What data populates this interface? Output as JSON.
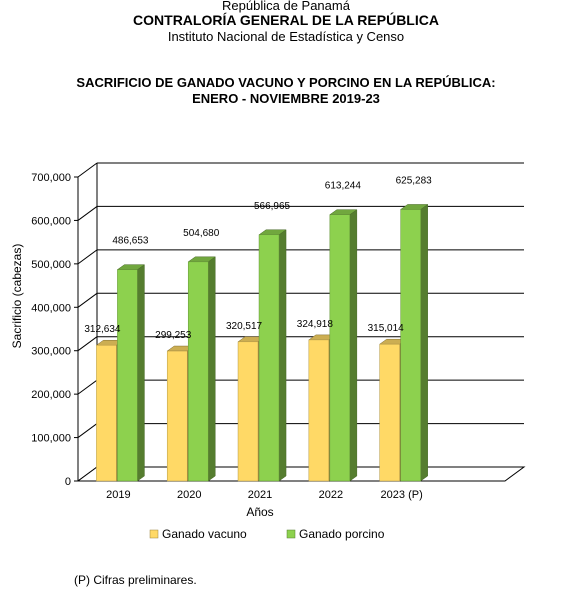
{
  "header": {
    "line1": "República de Panamá",
    "line2": "CONTRALORÍA GENERAL DE LA REPÚBLICA",
    "line3": "Instituto Nacional de Estadística y Censo"
  },
  "chart_data": {
    "type": "bar",
    "title": "SACRIFICIO DE GANADO VACUNO Y PORCINO EN LA REPÚBLICA:",
    "subtitle": "ENERO - NOVIEMBRE 2019-23",
    "categories": [
      "2019",
      "2020",
      "2021",
      "2022",
      "2023 (P)"
    ],
    "series": [
      {
        "name": "Ganado vacuno",
        "values": [
          312634,
          299253,
          320517,
          324918,
          315014
        ],
        "labels": [
          "312,634",
          "299,253",
          "320,517",
          "324,918",
          "315,014"
        ],
        "color": "#FFD966"
      },
      {
        "name": "Ganado porcino",
        "values": [
          486653,
          504680,
          566965,
          613244,
          625283
        ],
        "labels": [
          "486,653",
          "504,680",
          "566,965",
          "613,244",
          "625,283"
        ],
        "color": "#8DD14E"
      }
    ],
    "xlabel": "Años",
    "ylabel": "Sacrificio (cabezas)",
    "ylim": [
      0,
      700000
    ],
    "yticks": [
      "0",
      "100,000",
      "200,000",
      "300,000",
      "400,000",
      "500,000",
      "600,000",
      "700,000"
    ],
    "grid": true,
    "legend": "bottom"
  },
  "footnote": "(P) Cifras preliminares."
}
